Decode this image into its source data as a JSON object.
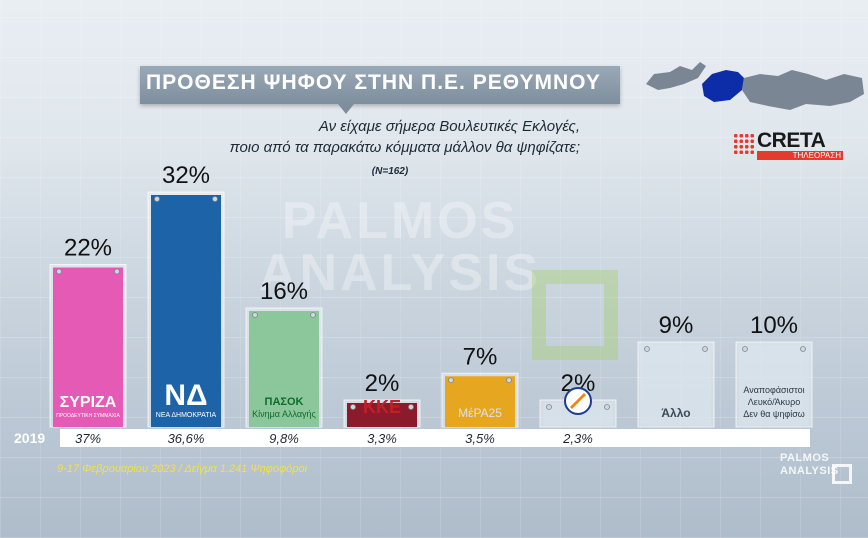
{
  "header": {
    "title": "ΠΡΟΘΕΣΗ ΨΗΦΟΥ ΣΤΗΝ Π.Ε. ΡΕΘΥΜΝΟΥ",
    "question_line1": "Αν είχαμε σήμερα Βουλευτικές Εκλογές,",
    "question_line2": "ποιο από τα παρακάτω κόμματα μάλλον θα ψηφίζατε;",
    "sample": "(N=162)"
  },
  "brand": {
    "name": "CRETA",
    "sub": "ΤΗΛΕΟΡΑΣΗ"
  },
  "watermark": {
    "line1": "PALMOS",
    "line2": "ANALYSIS"
  },
  "chart_data": {
    "type": "bar",
    "categories": [
      "ΣΥΡΙΖΑ",
      "ΝΔ",
      "ΠΑΣΟΚ",
      "ΚΚΕ",
      "ΜέΡΑ25",
      "Ελληνική Λύση",
      "Άλλο",
      "Αναποφάσιστοι Λευκό/Άκυρο Δεν θα ψηφίσω"
    ],
    "values": [
      22,
      32,
      16,
      2,
      7,
      2,
      9,
      10
    ],
    "value_labels": [
      "22%",
      "32%",
      "16%",
      "2%",
      "7%",
      "2%",
      "9%",
      "10%"
    ],
    "previous_year_label": "2019",
    "previous_values_labels": [
      "37%",
      "36,6%",
      "9,8%",
      "3,3%",
      "3,5%",
      "2,3%",
      "",
      ""
    ],
    "bar_colors": [
      "#e45ab5",
      "#1d63a8",
      "#8bc79a",
      "#8b1a2a",
      "#e7a61f",
      "#d7e3ec",
      "#d7e3ec",
      "#d7e3ec"
    ],
    "ylim": [
      0,
      32
    ],
    "grid": false,
    "legend": "none"
  },
  "bar_texts": {
    "syriza": "ΣΥΡΙΖΑ",
    "syriza_sub": "ΠΡΟΟΔΕΥΤΙΚΗ ΣΥΜΜΑΧΙΑ",
    "nd": "ΝΔ",
    "nd_sub": "ΝΕΑ ΔΗΜΟΚΡΑΤΙΑ",
    "pasok": "ΠΑΣΟΚ",
    "pasok_sub": "Κίνημα Αλλαγής",
    "kke": "ΚΚΕ",
    "mera": "ΜέΡΑ25",
    "allo": "Άλλο",
    "undecided_1": "Αναποφάσιστοι",
    "undecided_2": "Λευκό/Άκυρο",
    "undecided_3": "Δεν θα ψηφίσω"
  },
  "footer": {
    "text": "9-17 Φεβρουαρίου 2023 / Δείγμα 1.241 Ψηφοφόροι",
    "logo_line1": "PALMOS",
    "logo_line2": "ANALYSIS"
  }
}
